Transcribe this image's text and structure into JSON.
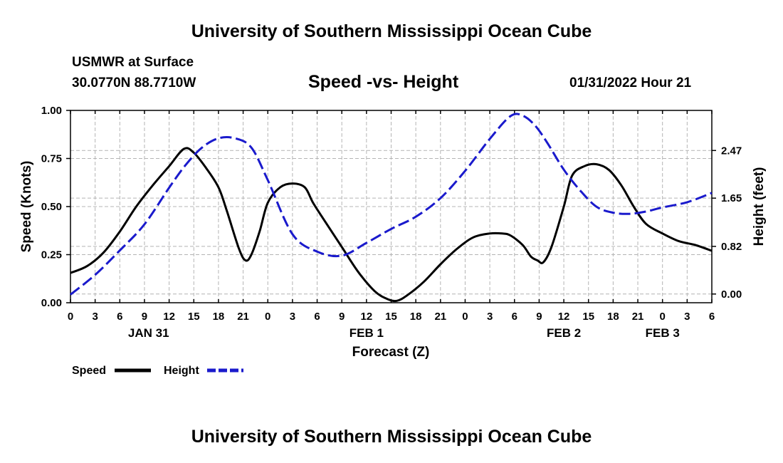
{
  "header": {
    "title": "University of Southern Mississippi Ocean Cube",
    "station": "USMWR at Surface",
    "coordinates": "30.0770N  88.7710W",
    "date": "01/31/2022 Hour 21"
  },
  "footer": {
    "title": "University of Southern Mississippi Ocean Cube"
  },
  "chart_data": {
    "type": "line",
    "title": "Speed -vs- Height",
    "xlabel": "Forecast (Z)",
    "ylabel": "Speed (Knots)",
    "y2label": "Height (feet)",
    "xlim": [
      0,
      78
    ],
    "ylim": [
      0,
      1
    ],
    "y2lim": [
      -0.15,
      3.16
    ],
    "grid": true,
    "x_ticks": [
      {
        "x": 0,
        "label": "0"
      },
      {
        "x": 3,
        "label": "3"
      },
      {
        "x": 6,
        "label": "6"
      },
      {
        "x": 9,
        "label": "9"
      },
      {
        "x": 12,
        "label": "12"
      },
      {
        "x": 15,
        "label": "15"
      },
      {
        "x": 18,
        "label": "18"
      },
      {
        "x": 21,
        "label": "21"
      },
      {
        "x": 24,
        "label": "0"
      },
      {
        "x": 27,
        "label": "3"
      },
      {
        "x": 30,
        "label": "6"
      },
      {
        "x": 33,
        "label": "9"
      },
      {
        "x": 36,
        "label": "12"
      },
      {
        "x": 39,
        "label": "15"
      },
      {
        "x": 42,
        "label": "18"
      },
      {
        "x": 45,
        "label": "21"
      },
      {
        "x": 48,
        "label": "0"
      },
      {
        "x": 51,
        "label": "3"
      },
      {
        "x": 54,
        "label": "6"
      },
      {
        "x": 57,
        "label": "9"
      },
      {
        "x": 60,
        "label": "12"
      },
      {
        "x": 63,
        "label": "15"
      },
      {
        "x": 66,
        "label": "18"
      },
      {
        "x": 69,
        "label": "21"
      },
      {
        "x": 72,
        "label": "0"
      },
      {
        "x": 75,
        "label": "3"
      },
      {
        "x": 78,
        "label": "6"
      }
    ],
    "day_labels": [
      {
        "x": 9.5,
        "label": "JAN 31"
      },
      {
        "x": 36,
        "label": "FEB 1"
      },
      {
        "x": 60,
        "label": "FEB 2"
      },
      {
        "x": 72,
        "label": "FEB 3"
      }
    ],
    "y_ticks": [
      {
        "v": 0,
        "label": "0.00"
      },
      {
        "v": 0.25,
        "label": "0.25"
      },
      {
        "v": 0.5,
        "label": "0.50"
      },
      {
        "v": 0.75,
        "label": "0.75"
      },
      {
        "v": 1,
        "label": "1.00"
      }
    ],
    "y2_ticks": [
      {
        "v": 0,
        "label": "0.00"
      },
      {
        "v": 0.82,
        "label": "0.82"
      },
      {
        "v": 1.65,
        "label": "1.65"
      },
      {
        "v": 2.47,
        "label": "2.47"
      }
    ],
    "series": [
      {
        "name": "Speed",
        "axis": "left",
        "color": "#000000",
        "dash": "solid",
        "x": [
          0,
          2,
          4,
          6,
          8,
          10,
          12,
          13.8,
          15,
          16.5,
          18,
          19,
          20.5,
          21.3,
          22,
          23,
          24,
          25.5,
          27,
          28.5,
          29.5,
          31,
          33,
          35,
          37,
          38.5,
          39.7,
          41,
          43,
          45,
          47,
          49,
          51,
          52.5,
          53.5,
          55,
          56,
          56.8,
          57.5,
          58.5,
          60,
          61,
          62.5,
          64,
          65.5,
          67,
          68.5,
          70,
          72,
          74,
          76,
          78
        ],
        "y": [
          0.155,
          0.19,
          0.26,
          0.37,
          0.5,
          0.61,
          0.71,
          0.8,
          0.78,
          0.7,
          0.6,
          0.48,
          0.28,
          0.22,
          0.25,
          0.37,
          0.52,
          0.6,
          0.62,
          0.6,
          0.52,
          0.42,
          0.29,
          0.16,
          0.06,
          0.02,
          0.01,
          0.04,
          0.11,
          0.2,
          0.28,
          0.34,
          0.36,
          0.36,
          0.35,
          0.3,
          0.24,
          0.22,
          0.21,
          0.29,
          0.5,
          0.66,
          0.71,
          0.72,
          0.69,
          0.61,
          0.5,
          0.41,
          0.36,
          0.32,
          0.3,
          0.27
        ]
      },
      {
        "name": "Height",
        "axis": "right",
        "color": "#1a1acc",
        "dash": "dashed",
        "x": [
          0,
          3,
          6,
          9,
          12,
          14,
          16,
          18,
          20,
          22,
          24,
          27,
          30,
          33,
          36,
          39,
          42,
          45,
          48,
          51,
          53.5,
          55,
          56.5,
          58,
          60,
          62,
          64,
          66,
          68,
          70,
          72,
          75,
          78
        ],
        "y": [
          -0.01,
          0.33,
          0.75,
          1.2,
          1.83,
          2.22,
          2.52,
          2.68,
          2.68,
          2.52,
          1.96,
          1.03,
          0.73,
          0.66,
          0.88,
          1.12,
          1.33,
          1.65,
          2.12,
          2.67,
          3.06,
          3.07,
          2.9,
          2.6,
          2.14,
          1.78,
          1.5,
          1.4,
          1.38,
          1.42,
          1.49,
          1.58,
          1.74
        ]
      }
    ],
    "legend": [
      {
        "label": "Speed",
        "color": "#000000",
        "dash": "solid"
      },
      {
        "label": "Height",
        "color": "#1a1acc",
        "dash": "dashed"
      }
    ],
    "legend_position": "bottom-left"
  }
}
